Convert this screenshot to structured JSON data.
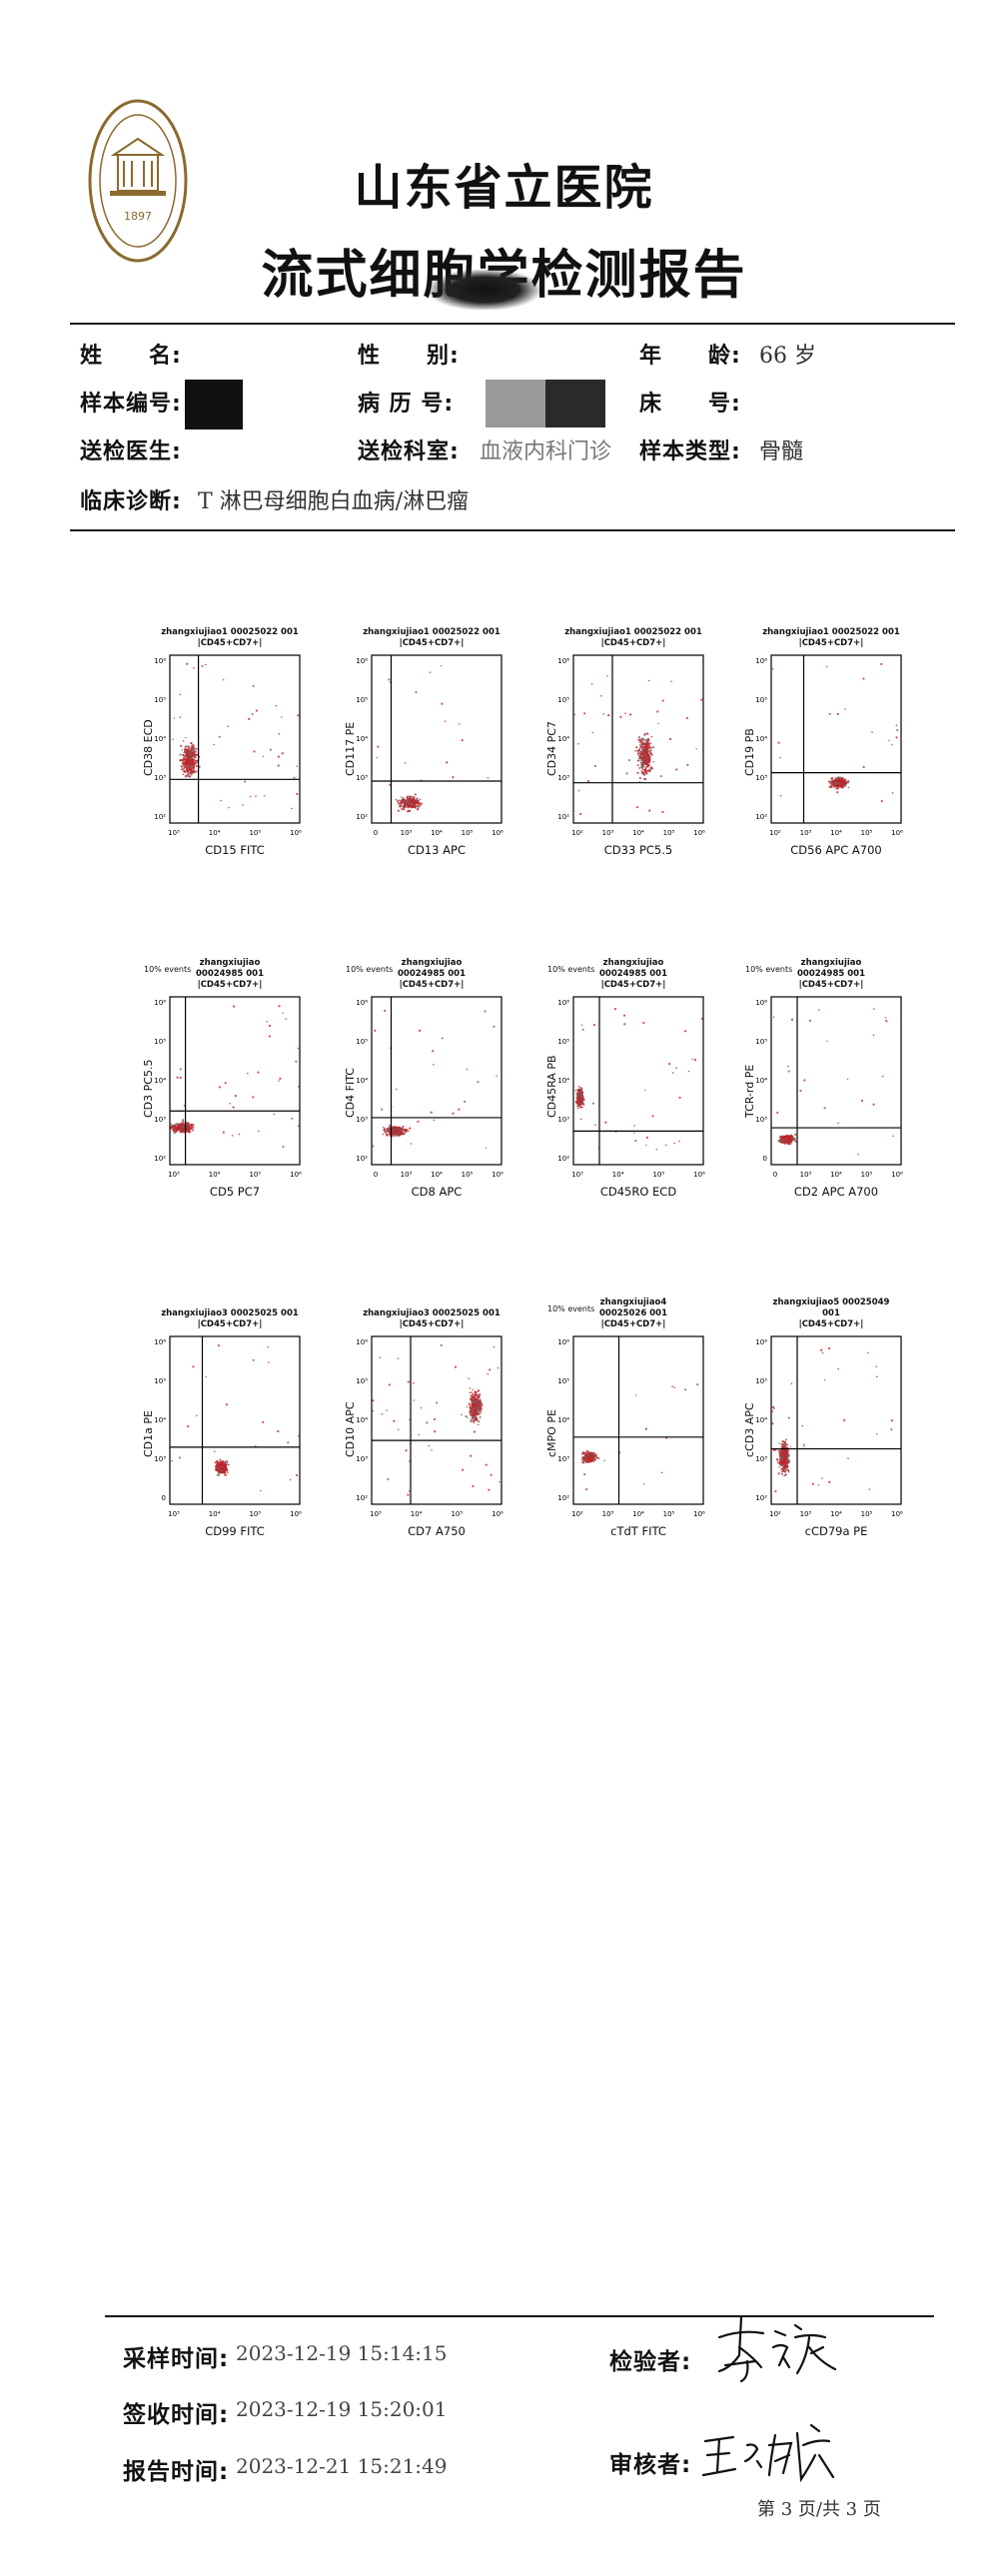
{
  "header": {
    "hospital_name": "山东省立医院",
    "report_title": "流式细胞学检测报告",
    "logo_year": "1897"
  },
  "patient": {
    "name_label": "姓　　名:",
    "name_value": "",
    "sex_label": "性　　别:",
    "sex_value": "",
    "age_label": "年　　龄:",
    "age_value": "66 岁",
    "sample_no_label": "样本编号:",
    "sample_no_value": "",
    "record_no_label": "病 历 号:",
    "record_no_value": "",
    "bed_label": "床　　号:",
    "bed_value": "",
    "doctor_label": "送检医生:",
    "doctor_value": "",
    "dept_label": "送检科室:",
    "dept_value": "血液内科门诊",
    "sample_type_label": "样本类型:",
    "sample_type_value": "骨髓",
    "diagnosis_label": "临床诊断:",
    "diagnosis_value": "T 淋巴母细胞白血病/淋巴瘤"
  },
  "plots": [
    {
      "title1": "zhangxiujiao1 00025022 001",
      "title2": "|CD45+CD7+|",
      "events": "",
      "xlabel": "CD15 FITC",
      "ylabel": "CD38 ECD",
      "ticks": [
        "10³",
        "10⁴",
        "10⁵",
        "10⁶"
      ],
      "yticks": [
        "10²",
        "10³",
        "10⁴",
        "10⁵",
        "10⁶"
      ]
    },
    {
      "title1": "zhangxiujiao1 00025022 001",
      "title2": "|CD45+CD7+|",
      "events": "",
      "xlabel": "CD13 APC",
      "ylabel": "CD117 PE",
      "ticks": [
        "0",
        "10³",
        "10⁴",
        "10⁵",
        "10⁶"
      ],
      "yticks": [
        "10²",
        "10³",
        "10⁴",
        "10⁵",
        "10⁶"
      ]
    },
    {
      "title1": "zhangxiujiao1 00025022 001",
      "title2": "|CD45+CD7+|",
      "events": "",
      "xlabel": "CD33 PC5.5",
      "ylabel": "CD34 PC7",
      "ticks": [
        "10²",
        "10³",
        "10⁴",
        "10⁵",
        "10⁶"
      ],
      "yticks": [
        "10²",
        "10³",
        "10⁴",
        "10⁵",
        "10⁶"
      ]
    },
    {
      "title1": "zhangxiujiao1 00025022 001",
      "title2": "|CD45+CD7+|",
      "events": "",
      "xlabel": "CD56 APC A700",
      "ylabel": "CD19 PB",
      "ticks": [
        "10²",
        "10³",
        "10⁴",
        "10⁵",
        "10⁶"
      ],
      "yticks": [
        "10²",
        "10³",
        "10⁴",
        "10⁵",
        "10⁶"
      ]
    },
    {
      "title1": "zhangxiujiao",
      "title2": "00024985 001",
      "title3": "|CD45+CD7+|",
      "events": "10% events",
      "xlabel": "CD5 PC7",
      "ylabel": "CD3 PC5.5",
      "ticks": [
        "10³",
        "10⁴",
        "10⁵",
        "10⁶"
      ],
      "yticks": [
        "10²",
        "10³",
        "10⁴",
        "10⁵",
        "10⁶"
      ]
    },
    {
      "title1": "zhangxiujiao",
      "title2": "00024985 001",
      "title3": "|CD45+CD7+|",
      "events": "10% events",
      "xlabel": "CD8 APC",
      "ylabel": "CD4 FITC",
      "ticks": [
        "0",
        "10³",
        "10⁴",
        "10⁵",
        "10⁶"
      ],
      "yticks": [
        "10²",
        "10³",
        "10⁴",
        "10⁵",
        "10⁶"
      ]
    },
    {
      "title1": "zhangxiujiao",
      "title2": "00024985 001",
      "title3": "|CD45+CD7+|",
      "events": "10% events",
      "xlabel": "CD45RO ECD",
      "ylabel": "CD45RA PB",
      "ticks": [
        "10³",
        "10⁴",
        "10⁵",
        "10⁶"
      ],
      "yticks": [
        "10²",
        "10³",
        "10⁴",
        "10⁵",
        "10⁶"
      ]
    },
    {
      "title1": "zhangxiujiao",
      "title2": "00024985 001",
      "title3": "|CD45+CD7+|",
      "events": "10% events",
      "xlabel": "CD2 APC A700",
      "ylabel": "TCR-rd PE",
      "ticks": [
        "0",
        "10³",
        "10⁴",
        "10⁵",
        "10⁶"
      ],
      "yticks": [
        "0",
        "10³",
        "10⁴",
        "10⁵",
        "10⁶"
      ]
    },
    {
      "title1": "zhangxiujiao3 00025025 001",
      "title2": "|CD45+CD7+|",
      "events": "",
      "xlabel": "CD99 FITC",
      "ylabel": "CD1a PE",
      "ticks": [
        "10³",
        "10⁴",
        "10⁵",
        "10⁶"
      ],
      "yticks": [
        "0",
        "10³",
        "10⁴",
        "10⁵",
        "10⁶"
      ]
    },
    {
      "title1": "zhangxiujiao3 00025025 001",
      "title2": "|CD45+CD7+|",
      "events": "",
      "xlabel": "CD7 A750",
      "ylabel": "CD10 APC",
      "ticks": [
        "10³",
        "10⁴",
        "10⁵",
        "10⁶"
      ],
      "yticks": [
        "10²",
        "10³",
        "10⁴",
        "10⁵",
        "10⁶"
      ]
    },
    {
      "title1": "zhangxiujiao4",
      "title2": "00025026 001",
      "title3": "|CD45+CD7+|",
      "events": "10% events",
      "xlabel": "cTdT FITC",
      "ylabel": "cMPO PE",
      "ticks": [
        "10²",
        "10³",
        "10⁴",
        "10⁵",
        "10⁶"
      ],
      "yticks": [
        "10²",
        "10³",
        "10⁴",
        "10⁵",
        "10⁶"
      ]
    },
    {
      "title1": "zhangxiujiao5 00025049",
      "title2": "001",
      "title3": "|CD45+CD7+|",
      "events": "",
      "xlabel": "cCD79a PE",
      "ylabel": "cCD3 APC",
      "ticks": [
        "10²",
        "10³",
        "10⁴",
        "10⁵",
        "10⁶"
      ],
      "yticks": [
        "10²",
        "10³",
        "10⁴",
        "10⁵",
        "10⁶"
      ]
    }
  ],
  "footer": {
    "sample_time_label": "采样时间:",
    "sample_time_value": "2023-12-19 15:14:15",
    "receive_time_label": "签收时间:",
    "receive_time_value": "2023-12-19 15:20:01",
    "report_time_label": "报告时间:",
    "report_time_value": "2023-12-21 15:21:49",
    "examiner_label": "检验者:",
    "examiner_signature": "李祯",
    "reviewer_label": "审核者:",
    "reviewer_signature": "王玉娥",
    "page_indicator": "第 3 页/共 3 页"
  },
  "colors": {
    "text": "#111111",
    "dot": "#c0262a",
    "line": "#000000"
  }
}
